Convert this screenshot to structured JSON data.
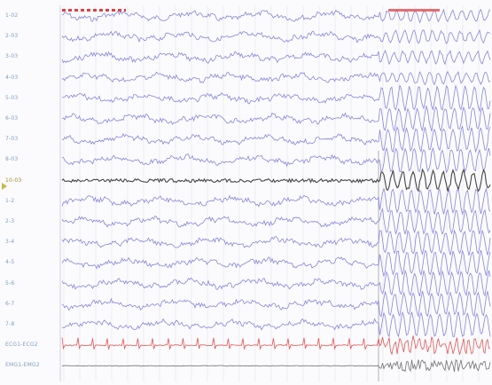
{
  "channels": [
    {
      "label": "1-02",
      "color": "#7878d8"
    },
    {
      "label": "2-03",
      "color": "#7878d8"
    },
    {
      "label": "3-03",
      "color": "#7878d8"
    },
    {
      "label": "4-03",
      "color": "#7878d8"
    },
    {
      "label": "5-03",
      "color": "#7878d8"
    },
    {
      "label": "6-03",
      "color": "#7878d8"
    },
    {
      "label": "7-03",
      "color": "#7878d8"
    },
    {
      "label": "8-03",
      "color": "#7878d8"
    },
    {
      "label": "10-03",
      "color": "#303030"
    },
    {
      "label": "1-2",
      "color": "#7878d8"
    },
    {
      "label": "2-3",
      "color": "#7878d8"
    },
    {
      "label": "3-4",
      "color": "#7878d8"
    },
    {
      "label": "4-5",
      "color": "#7878d8"
    },
    {
      "label": "5-6",
      "color": "#7878d8"
    },
    {
      "label": "6-7",
      "color": "#7878d8"
    },
    {
      "label": "7-8",
      "color": "#7878d8"
    },
    {
      "label": "ECG1-ECG2",
      "color": "#e04040"
    },
    {
      "label": "EMG1-EMG2",
      "color": "#505050"
    }
  ],
  "selected_channel": "10-03",
  "colors": {
    "background": "#fbfbfd",
    "grid": "#e6e6ee",
    "eeg": "#7878d8",
    "selected_trace": "#303030",
    "ecg": "#e04040",
    "event_marker": "#e04040",
    "label": "#7fa0c0"
  }
}
